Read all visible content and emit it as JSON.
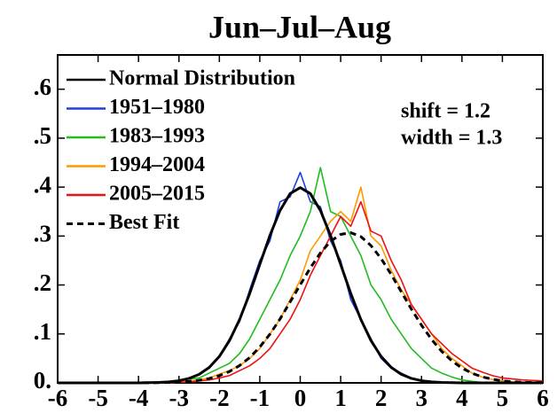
{
  "chart_data": {
    "type": "line",
    "title": "Jun–Jul–Aug",
    "x": [
      -6,
      -5.75,
      -5.5,
      -5.25,
      -5,
      -4.75,
      -4.5,
      -4.25,
      -4,
      -3.75,
      -3.5,
      -3.25,
      -3,
      -2.75,
      -2.5,
      -2.25,
      -2,
      -1.75,
      -1.5,
      -1.25,
      -1,
      -0.75,
      -0.5,
      -0.25,
      0,
      0.25,
      0.5,
      0.75,
      1,
      1.25,
      1.5,
      1.75,
      2,
      2.25,
      2.5,
      2.75,
      3,
      3.25,
      3.5,
      3.75,
      4,
      4.25,
      4.5,
      4.75,
      5,
      5.25,
      5.5,
      5.75,
      6
    ],
    "series": [
      {
        "name": "Normal Distribution",
        "color": "#000000",
        "style": "solid",
        "width": 3,
        "values": [
          0,
          0,
          0,
          0,
          0,
          0,
          0,
          0,
          0.0001,
          0.0004,
          0.0009,
          0.002,
          0.0044,
          0.0091,
          0.0175,
          0.0317,
          0.054,
          0.0863,
          0.1295,
          0.1826,
          0.242,
          0.3011,
          0.3521,
          0.3867,
          0.3989,
          0.3867,
          0.3521,
          0.3011,
          0.242,
          0.1826,
          0.1295,
          0.0863,
          0.054,
          0.0317,
          0.0175,
          0.0091,
          0.0044,
          0.002,
          0.0009,
          0.0004,
          0.0001,
          0,
          0,
          0,
          0,
          0,
          0,
          0,
          0
        ]
      },
      {
        "name": "1951–1980",
        "color": "#1f3fe0",
        "style": "solid",
        "width": 1.6,
        "values": [
          0,
          0,
          0,
          0,
          0,
          0,
          0,
          0,
          0,
          0.001,
          0.001,
          0.002,
          0.005,
          0.01,
          0.018,
          0.03,
          0.055,
          0.09,
          0.125,
          0.19,
          0.25,
          0.29,
          0.37,
          0.38,
          0.43,
          0.37,
          0.36,
          0.29,
          0.25,
          0.17,
          0.13,
          0.09,
          0.05,
          0.03,
          0.02,
          0.01,
          0.004,
          0.002,
          0.001,
          0,
          0,
          0,
          0,
          0,
          0,
          0,
          0,
          0,
          0
        ]
      },
      {
        "name": "1983–1993",
        "color": "#22bb22",
        "style": "solid",
        "width": 1.6,
        "values": [
          0,
          0,
          0,
          0,
          0,
          0,
          0,
          0,
          0,
          0,
          0,
          0.002,
          0.004,
          0.008,
          0.01,
          0.02,
          0.03,
          0.04,
          0.06,
          0.09,
          0.13,
          0.17,
          0.21,
          0.26,
          0.3,
          0.35,
          0.44,
          0.35,
          0.34,
          0.3,
          0.26,
          0.2,
          0.17,
          0.13,
          0.1,
          0.07,
          0.05,
          0.03,
          0.02,
          0.012,
          0.006,
          0.003,
          0.001,
          0,
          0,
          0,
          0,
          0,
          0
        ]
      },
      {
        "name": "1994–2004",
        "color": "#ff9900",
        "style": "solid",
        "width": 1.6,
        "values": [
          0,
          0,
          0,
          0,
          0,
          0,
          0,
          0,
          0,
          0,
          0,
          0,
          0.002,
          0.004,
          0.006,
          0.01,
          0.018,
          0.025,
          0.035,
          0.05,
          0.07,
          0.1,
          0.13,
          0.17,
          0.21,
          0.27,
          0.3,
          0.33,
          0.35,
          0.33,
          0.4,
          0.3,
          0.28,
          0.23,
          0.19,
          0.16,
          0.13,
          0.1,
          0.07,
          0.05,
          0.035,
          0.02,
          0.012,
          0.007,
          0.004,
          0.002,
          0,
          0,
          0
        ]
      },
      {
        "name": "2005–2015",
        "color": "#ee1111",
        "style": "solid",
        "width": 1.6,
        "values": [
          0,
          0,
          0,
          0,
          0,
          0,
          0,
          0,
          0,
          0,
          0,
          0,
          0.001,
          0.002,
          0.004,
          0.006,
          0.01,
          0.015,
          0.025,
          0.035,
          0.05,
          0.07,
          0.1,
          0.13,
          0.17,
          0.22,
          0.26,
          0.3,
          0.34,
          0.32,
          0.37,
          0.31,
          0.3,
          0.25,
          0.21,
          0.16,
          0.13,
          0.1,
          0.08,
          0.06,
          0.045,
          0.03,
          0.022,
          0.015,
          0.01,
          0.008,
          0.006,
          0.005,
          0.004
        ]
      },
      {
        "name": "Best Fit",
        "color": "#000000",
        "style": "dashed",
        "width": 3,
        "values": [
          0,
          0,
          0,
          0,
          0,
          0,
          0,
          0.0001,
          0.0001,
          0.0002,
          0.0004,
          0.0009,
          0.0017,
          0.003,
          0.0053,
          0.0089,
          0.0148,
          0.0232,
          0.0355,
          0.0516,
          0.0733,
          0.0995,
          0.1305,
          0.1652,
          0.2004,
          0.2348,
          0.2655,
          0.2894,
          0.3033,
          0.3068,
          0.2988,
          0.2805,
          0.254,
          0.2216,
          0.1861,
          0.1507,
          0.1177,
          0.0886,
          0.0642,
          0.0449,
          0.0302,
          0.0196,
          0.0123,
          0.0074,
          0.0043,
          0.0024,
          0.0013,
          0.0007,
          0.0003
        ]
      }
    ],
    "xlim": [
      -6,
      6
    ],
    "xticks": [
      -6,
      -5,
      -4,
      -3,
      -2,
      -1,
      0,
      1,
      2,
      3,
      4,
      5,
      6
    ],
    "ylim": [
      0,
      0.67
    ],
    "yticks": [
      {
        "value": 0,
        "label": "0."
      },
      {
        "value": 0.1,
        "label": ".1"
      },
      {
        "value": 0.2,
        "label": ".2"
      },
      {
        "value": 0.3,
        "label": ".3"
      },
      {
        "value": 0.4,
        "label": ".4"
      },
      {
        "value": 0.5,
        "label": ".5"
      },
      {
        "value": 0.6,
        "label": ".6"
      }
    ],
    "grid": false,
    "legend": "upper left",
    "annotations": [
      "shift = 1.2",
      "width = 1.3"
    ]
  }
}
